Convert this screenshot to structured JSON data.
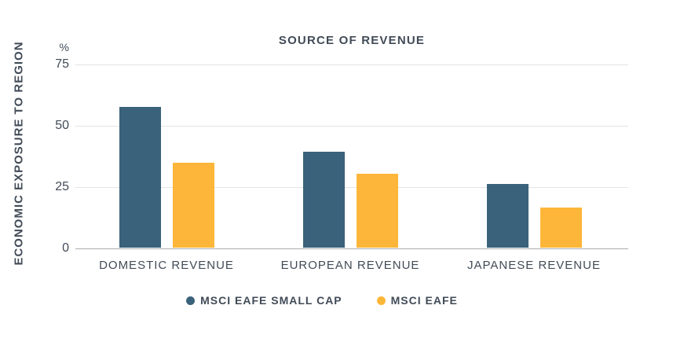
{
  "chart_data": {
    "type": "bar",
    "title": "SOURCE OF REVENUE",
    "ylabel": "ECONOMIC EXPOSURE TO REGION",
    "y_unit": "%",
    "xlabel": "",
    "categories": [
      "DOMESTIC REVENUE",
      "EUROPEAN REVENUE",
      "JAPANESE REVENUE"
    ],
    "series": [
      {
        "name": "MSCI EAFE SMALL CAP",
        "color": "#3A627B",
        "values": [
          57.5,
          39,
          26
        ]
      },
      {
        "name": "MSCI EAFE",
        "color": "#FDB639",
        "values": [
          34.5,
          30,
          16.5
        ]
      }
    ],
    "ylim": [
      0,
      75
    ],
    "yticks": [
      0,
      25,
      50,
      75
    ],
    "grid": true,
    "legend_position": "bottom"
  },
  "colors": {
    "text": "#414B57",
    "gridline": "#E4E4E4",
    "axis_line": "#ABABAB",
    "background": "#FFFFFF"
  }
}
